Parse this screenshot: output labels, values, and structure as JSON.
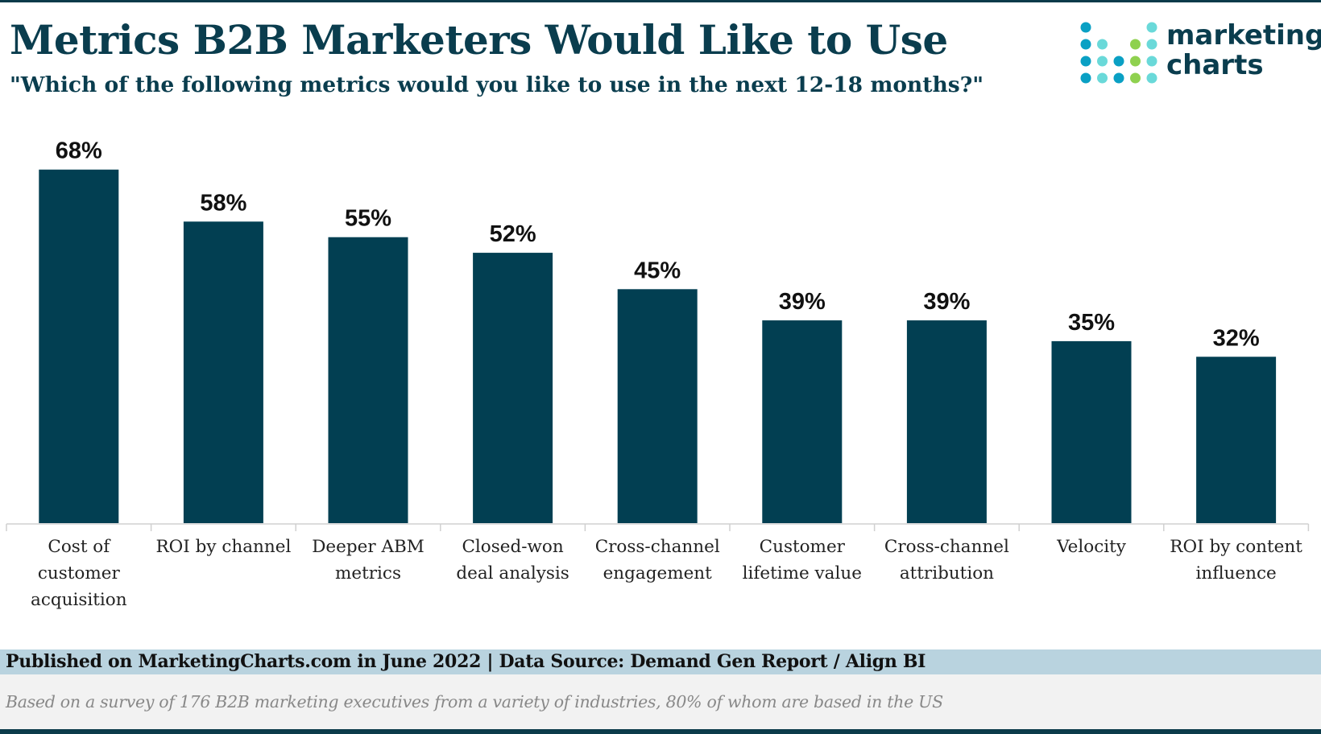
{
  "header": {
    "title": "Metrics B2B Marketers Would Like to Use",
    "subtitle": "\"Which of the following metrics would you like to use in the next 12-18 months?\""
  },
  "logo": {
    "line1": "marketing",
    "line2": "charts"
  },
  "colors": {
    "bar": "#023f52",
    "title": "#0a3d4e",
    "footer_band": "#b9d3df",
    "logo_blue": "#0aa0c4",
    "logo_teal": "#6ad9d9",
    "logo_green": "#8fd14f"
  },
  "chart_data": {
    "type": "bar",
    "categories": [
      [
        "Cost of",
        "customer",
        "acquisition"
      ],
      [
        "ROI by channel"
      ],
      [
        "Deeper ABM",
        "metrics"
      ],
      [
        "Closed-won",
        "deal analysis"
      ],
      [
        "Cross-channel",
        "engagement"
      ],
      [
        "Customer",
        "lifetime value"
      ],
      [
        "Cross-channel",
        "attribution"
      ],
      [
        "Velocity"
      ],
      [
        "ROI by content",
        "influence"
      ]
    ],
    "values": [
      68,
      58,
      55,
      52,
      45,
      39,
      39,
      35,
      32
    ],
    "value_labels": [
      "68%",
      "58%",
      "55%",
      "52%",
      "45%",
      "39%",
      "39%",
      "35%",
      "32%"
    ],
    "unit": "%",
    "title": "Metrics B2B Marketers Would Like to Use",
    "xlabel": "",
    "ylabel": "",
    "ylim": [
      0,
      70
    ],
    "grid": false,
    "legend": "none"
  },
  "footer": {
    "published": "Published on MarketingCharts.com in June 2022 | Data Source: Demand Gen Report / Align BI",
    "note": "Based on a survey of 176 B2B marketing executives from a variety of industries, 80% of whom are based in the US"
  }
}
